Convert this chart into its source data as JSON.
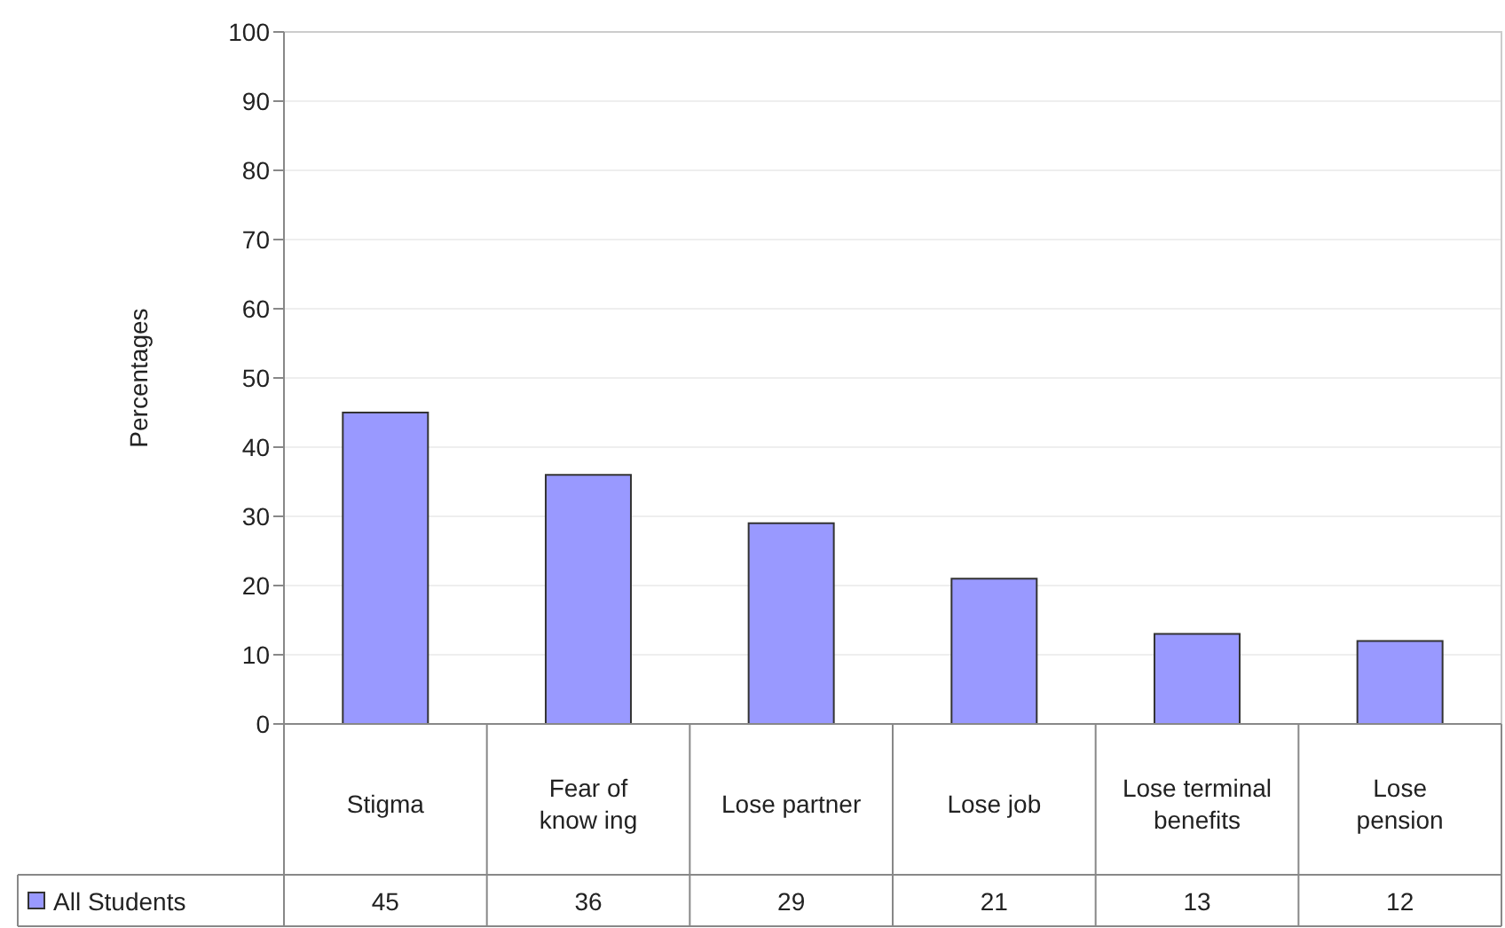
{
  "chart_data": {
    "type": "bar",
    "ylabel": "Percentages",
    "categories": [
      "Stigma",
      "Fear of\nknow ing",
      "Lose partner",
      "Lose job",
      "Lose terminal\nbenefits",
      "Lose\npension"
    ],
    "series": [
      {
        "name": "All Students",
        "color": "#9999ff",
        "values": [
          45,
          36,
          29,
          21,
          13,
          12
        ]
      }
    ],
    "ylim": [
      0,
      100
    ],
    "yticks": [
      0,
      10,
      20,
      30,
      40,
      50,
      60,
      70,
      80,
      90,
      100
    ],
    "grid": "y",
    "legend": "bottom left",
    "data_labels": true
  }
}
